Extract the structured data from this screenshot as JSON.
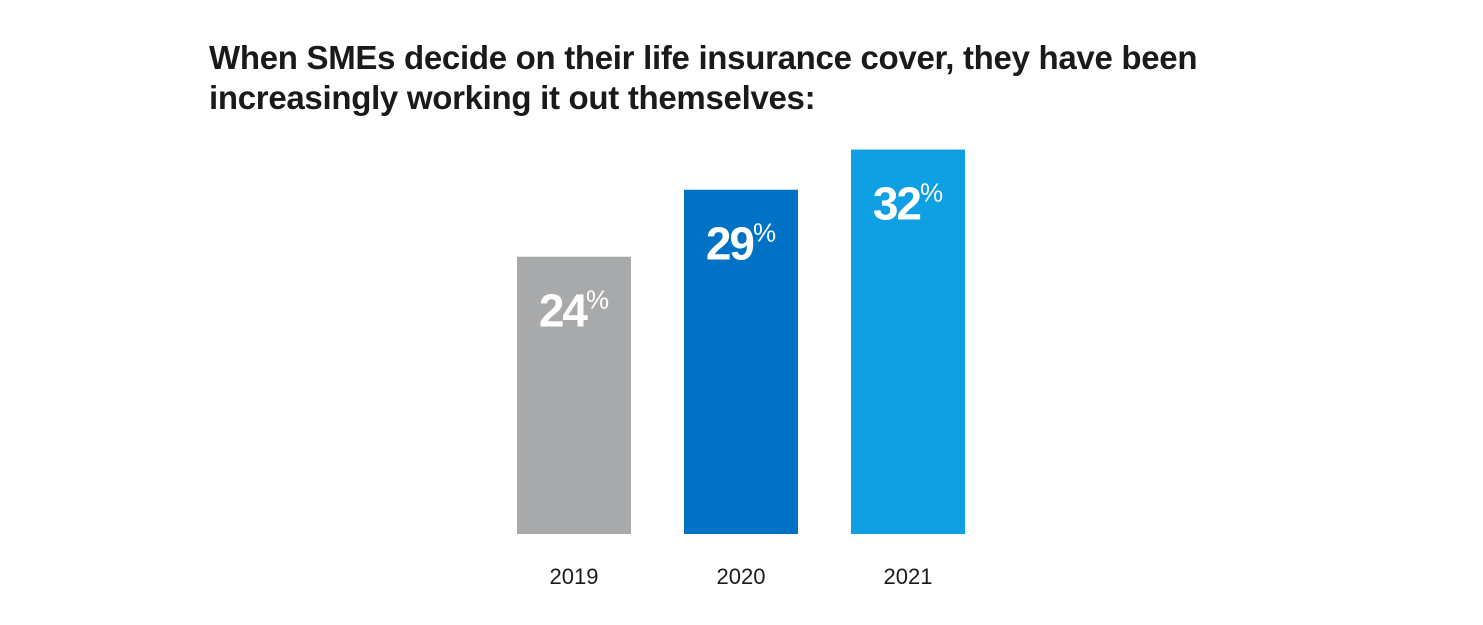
{
  "chart_data": {
    "type": "bar",
    "title": "When SMEs decide on their life insurance cover, they have been increasingly working it out themselves:",
    "categories": [
      "2019",
      "2020",
      "2021"
    ],
    "values": [
      24,
      29,
      32
    ],
    "value_labels": [
      "24%",
      "29%",
      "32%"
    ],
    "colors": [
      "#a7a9aa",
      "#0072c6",
      "#0f9fe3"
    ],
    "ylim": [
      3.3,
      35.7
    ]
  }
}
